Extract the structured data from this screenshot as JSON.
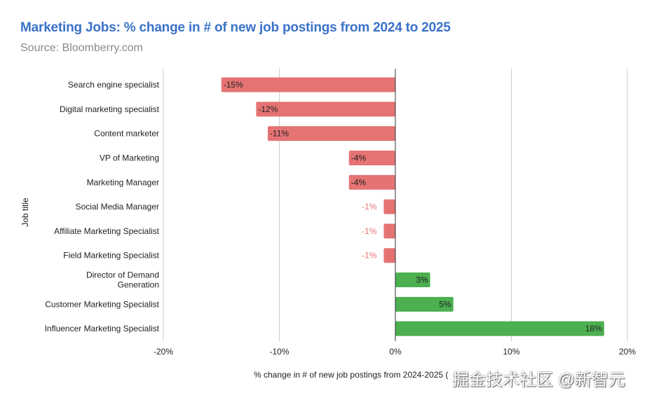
{
  "chart_data": {
    "type": "bar",
    "orientation": "horizontal",
    "title": "Marketing Jobs: % change in # of new job postings from 2024 to 2025",
    "subtitle": "Source: Bloomberry.com",
    "xlabel": "% change in # of new job postings from 2024-2025 (",
    "ylabel": "Job title",
    "xlim": [
      -20,
      20
    ],
    "xticks": [
      -20,
      -10,
      0,
      10,
      20
    ],
    "xtick_labels": [
      "-20%",
      "-10%",
      "0%",
      "10%",
      "20%"
    ],
    "grid": true,
    "categories": [
      "Search engine specialist",
      "Digital marketing specialist",
      "Content marketer",
      "VP of Marketing",
      "Marketing Manager",
      "Social Media Manager",
      "Affiliate Marketing Specialist",
      "Field Marketing Specialist",
      "Director of Demand Generation",
      "Customer Marketing Specialist",
      "Influencer Marketing Specialist"
    ],
    "values": [
      -15,
      -12,
      -11,
      -4,
      -4,
      -1,
      -1,
      -1,
      3,
      5,
      18
    ],
    "data_labels": [
      "-15%",
      "-12%",
      "-11%",
      "-4%",
      "-4%",
      "-1%",
      "-1%",
      "-1%",
      "3%",
      "5%",
      "18%"
    ],
    "colors": {
      "negative": "#e57373",
      "positive": "#4caf50",
      "title": "#3a72c8"
    }
  },
  "watermark": "掘金技术社区 @新智元"
}
